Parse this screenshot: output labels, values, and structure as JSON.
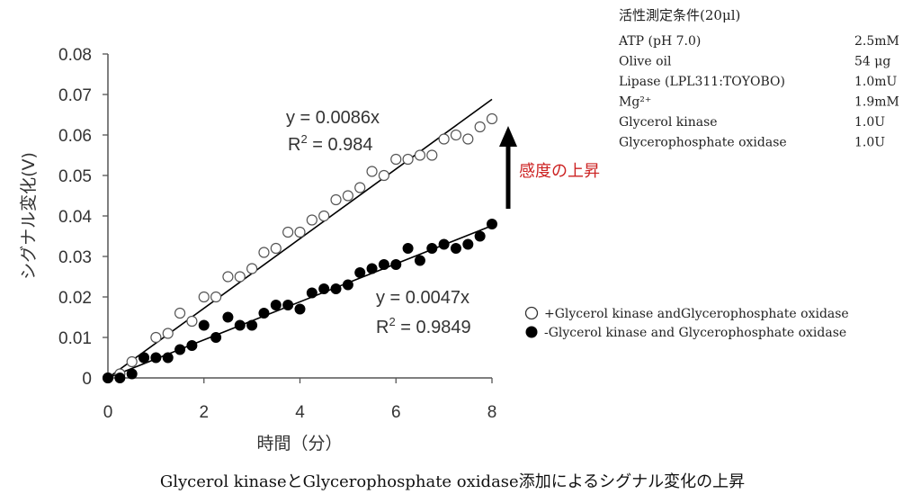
{
  "chart_data": {
    "type": "scatter",
    "xlabel": "時間（分）",
    "ylabel": "シグナル変化(V)",
    "xlim": [
      0,
      8
    ],
    "ylim": [
      0,
      0.08
    ],
    "xticks": [
      "0",
      "2",
      "4",
      "6",
      "8"
    ],
    "yticks": [
      "0",
      "0.01",
      "0.02",
      "0.03",
      "0.04",
      "0.05",
      "0.06",
      "0.07",
      "0.08"
    ],
    "grid": false,
    "series": [
      {
        "name": "+Glycerol kinase andGlycerophosphate oxidase",
        "marker": "open-circle",
        "x": [
          0,
          0.25,
          0.5,
          0.75,
          1.0,
          1.25,
          1.5,
          1.75,
          2.0,
          2.25,
          2.5,
          2.75,
          3.0,
          3.25,
          3.5,
          3.75,
          4.0,
          4.25,
          4.5,
          4.75,
          5.0,
          5.25,
          5.5,
          5.75,
          6.0,
          6.25,
          6.5,
          6.75,
          7.0,
          7.25,
          7.5,
          7.75,
          8.0
        ],
        "y": [
          0,
          0.001,
          0.004,
          0.005,
          0.01,
          0.011,
          0.016,
          0.014,
          0.02,
          0.02,
          0.025,
          0.025,
          0.027,
          0.031,
          0.032,
          0.036,
          0.036,
          0.039,
          0.04,
          0.044,
          0.045,
          0.047,
          0.051,
          0.05,
          0.054,
          0.054,
          0.055,
          0.055,
          0.059,
          0.06,
          0.059,
          0.062,
          0.064
        ],
        "fit": {
          "equation": "y = 0.0086x",
          "r2_prefix": "R",
          "r2_suffix": " = 0.984",
          "slope": 0.0086
        }
      },
      {
        "name": "-Glycerol kinase and Glycerophosphate oxidase",
        "marker": "filled-circle",
        "x": [
          0,
          0.25,
          0.5,
          0.75,
          1.0,
          1.25,
          1.5,
          1.75,
          2.0,
          2.25,
          2.5,
          2.75,
          3.0,
          3.25,
          3.5,
          3.75,
          4.0,
          4.25,
          4.5,
          4.75,
          5.0,
          5.25,
          5.5,
          5.75,
          6.0,
          6.25,
          6.5,
          6.75,
          7.0,
          7.25,
          7.5,
          7.75,
          8.0
        ],
        "y": [
          0,
          0,
          0.001,
          0.005,
          0.005,
          0.005,
          0.007,
          0.008,
          0.013,
          0.01,
          0.015,
          0.013,
          0.013,
          0.016,
          0.018,
          0.018,
          0.017,
          0.021,
          0.022,
          0.022,
          0.023,
          0.026,
          0.027,
          0.028,
          0.028,
          0.032,
          0.029,
          0.032,
          0.033,
          0.032,
          0.033,
          0.035,
          0.038
        ],
        "fit": {
          "equation": "y = 0.0047x",
          "r2_prefix": "R",
          "r2_suffix": " = 0.9849",
          "slope": 0.0047
        }
      }
    ],
    "annotation": "感度の上昇",
    "legend_placement": "right",
    "caption": "Glycerol kinaseとGlycerophosphate oxidase添加によるシグナル変化の上昇"
  },
  "conditions": {
    "title": "活性測定条件(20μl)",
    "rows": [
      {
        "label": "ATP (pH 7.0)",
        "value": "2.5mM"
      },
      {
        "label": "Olive oil",
        "value": "54 μg"
      },
      {
        "label": "Lipase (LPL311:TOYOBO)",
        "value": "1.0mU"
      },
      {
        "label": "Mg²⁺",
        "value": "1.9mM"
      },
      {
        "label": "Glycerol kinase",
        "value": "1.0U"
      },
      {
        "label": "Glycerophosphate oxidase",
        "value": "1.0U"
      }
    ]
  }
}
